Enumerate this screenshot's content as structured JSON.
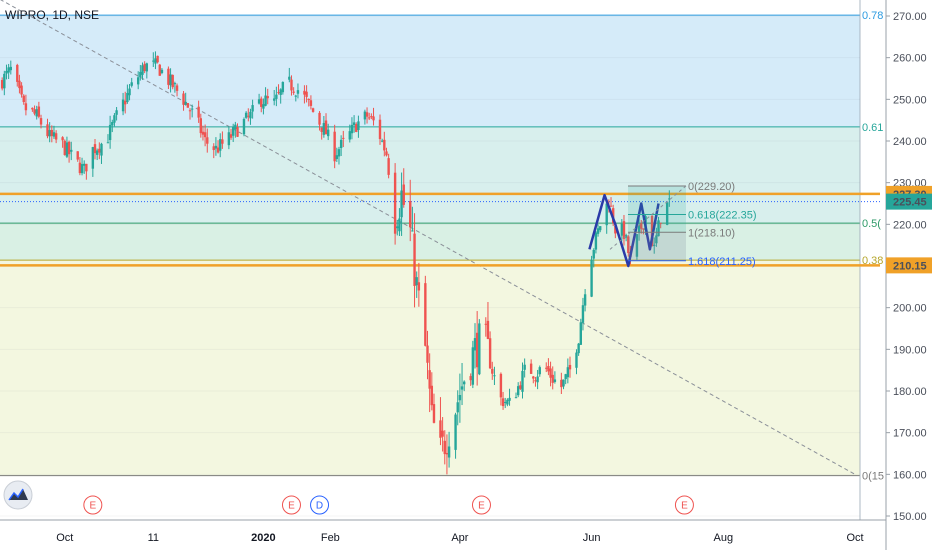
{
  "symbol": "WIPRO, 1D, NSE",
  "chart_data": {
    "type": "candlestick",
    "symbol": "WIPRO",
    "interval": "1D",
    "exchange": "NSE",
    "ylim": [
      148,
      274
    ],
    "y_ticks": [
      150,
      160,
      170,
      180,
      190,
      200,
      210,
      220,
      230,
      240,
      250,
      260,
      270
    ],
    "x_labels": [
      {
        "label": "Oct",
        "x": "2019-10-01"
      },
      {
        "label": "11",
        "x": "2019-11-11"
      },
      {
        "label": "2020",
        "x": "2020-01-01"
      },
      {
        "label": "Feb",
        "x": "2020-02-01"
      },
      {
        "label": "Apr",
        "x": "2020-04-01"
      },
      {
        "label": "Jun",
        "x": "2020-06-01"
      },
      {
        "label": "Aug",
        "x": "2020-08-01"
      },
      {
        "label": "Oct",
        "x": "2020-10-01"
      }
    ],
    "close_path": [
      [
        "2019-09-01",
        254
      ],
      [
        "2019-09-06",
        257
      ],
      [
        "2019-09-12",
        248
      ],
      [
        "2019-09-18",
        246
      ],
      [
        "2019-09-24",
        241
      ],
      [
        "2019-09-30",
        239
      ],
      [
        "2019-10-06",
        235
      ],
      [
        "2019-10-10",
        233
      ],
      [
        "2019-10-14",
        238
      ],
      [
        "2019-10-20",
        240
      ],
      [
        "2019-10-26",
        247
      ],
      [
        "2019-11-01",
        253
      ],
      [
        "2019-11-07",
        258
      ],
      [
        "2019-11-13",
        258
      ],
      [
        "2019-11-19",
        254
      ],
      [
        "2019-11-25",
        250
      ],
      [
        "2019-12-01",
        245
      ],
      [
        "2019-12-05",
        240
      ],
      [
        "2019-12-10",
        238
      ],
      [
        "2019-12-15",
        240
      ],
      [
        "2019-12-20",
        243
      ],
      [
        "2019-12-26",
        246
      ],
      [
        "2019-12-31",
        250
      ],
      [
        "2020-01-06",
        249
      ],
      [
        "2020-01-12",
        254
      ],
      [
        "2020-01-18",
        252
      ],
      [
        "2020-01-24",
        247
      ],
      [
        "2020-01-30",
        242
      ],
      [
        "2020-02-03",
        237
      ],
      [
        "2020-02-08",
        240
      ],
      [
        "2020-02-13",
        244
      ],
      [
        "2020-02-18",
        246
      ],
      [
        "2020-02-22",
        244
      ],
      [
        "2020-02-27",
        237
      ],
      [
        "2020-03-02",
        222
      ],
      [
        "2020-03-05",
        227
      ],
      [
        "2020-03-09",
        218
      ],
      [
        "2020-03-12",
        205
      ],
      [
        "2020-03-16",
        190
      ],
      [
        "2020-03-19",
        173
      ],
      [
        "2020-03-23",
        165
      ],
      [
        "2020-03-27",
        171
      ],
      [
        "2020-03-31",
        178
      ],
      [
        "2020-04-04",
        185
      ],
      [
        "2020-04-08",
        190
      ],
      [
        "2020-04-12",
        193
      ],
      [
        "2020-04-16",
        185
      ],
      [
        "2020-04-20",
        178
      ],
      [
        "2020-04-24",
        177
      ],
      [
        "2020-04-28",
        181
      ],
      [
        "2020-05-02",
        186
      ],
      [
        "2020-05-06",
        184
      ],
      [
        "2020-05-10",
        186
      ],
      [
        "2020-05-14",
        183
      ],
      [
        "2020-05-18",
        181
      ],
      [
        "2020-05-22",
        185
      ],
      [
        "2020-05-26",
        193
      ],
      [
        "2020-05-29",
        205
      ],
      [
        "2020-06-01",
        213
      ],
      [
        "2020-06-05",
        220
      ],
      [
        "2020-06-09",
        226
      ],
      [
        "2020-06-12",
        219
      ],
      [
        "2020-06-16",
        218
      ],
      [
        "2020-06-19",
        211
      ],
      [
        "2020-06-23",
        218
      ],
      [
        "2020-06-26",
        222
      ],
      [
        "2020-06-30",
        214
      ],
      [
        "2020-07-03",
        222
      ],
      [
        "2020-07-07",
        225.45
      ]
    ],
    "fib_retracement_levels": [
      {
        "label": "0.78",
        "value": 270.2,
        "color": "#2d9be0"
      },
      {
        "label": "0.61",
        "value": 243.4,
        "color": "#26a69a"
      },
      {
        "label": "0.5(",
        "value": 220.3,
        "color": "#2e9a68"
      },
      {
        "label": "0.38",
        "value": 211.4,
        "color": "#b5a52a"
      },
      {
        "label": "0(15",
        "value": 159.7,
        "color": "#7a7a7a"
      }
    ],
    "fib_extension_levels": [
      {
        "label": "0(229.20)",
        "value": 229.2,
        "color": "#7a7a7a"
      },
      {
        "label": "0.618(222.35)",
        "value": 222.35,
        "color": "#26a69a"
      },
      {
        "label": "1(218.10)",
        "value": 218.1,
        "color": "#7a7a7a"
      },
      {
        "label": "1.618(211.25)",
        "value": 211.25,
        "color": "#2962ff"
      }
    ],
    "horizontal_levels": [
      {
        "label": "227.30",
        "value": 227.3,
        "color": "#f0a128"
      },
      {
        "label": "210.15",
        "value": 210.15,
        "color": "#f0a128"
      }
    ],
    "last_price": {
      "label": "225.45",
      "value": 225.45,
      "color": "#26a69a"
    },
    "trendline": {
      "from": [
        "2019-09-01",
        274
      ],
      "to": [
        "2020-10-01",
        160
      ]
    },
    "wave_pattern": [
      [
        "2020-05-31",
        214
      ],
      [
        "2020-06-07",
        227
      ],
      [
        "2020-06-12",
        220
      ],
      [
        "2020-06-18",
        210
      ],
      [
        "2020-06-24",
        225
      ],
      [
        "2020-06-28",
        214
      ],
      [
        "2020-07-02",
        225
      ]
    ],
    "event_markers": [
      {
        "label": "E",
        "x": "2019-10-14"
      },
      {
        "label": "E",
        "x": "2020-01-14"
      },
      {
        "label": "D",
        "x": "2020-01-27"
      },
      {
        "label": "E",
        "x": "2020-04-11"
      },
      {
        "label": "E",
        "x": "2020-07-14"
      }
    ],
    "colors": {
      "up": "#26a69a",
      "down": "#ef5350"
    }
  }
}
